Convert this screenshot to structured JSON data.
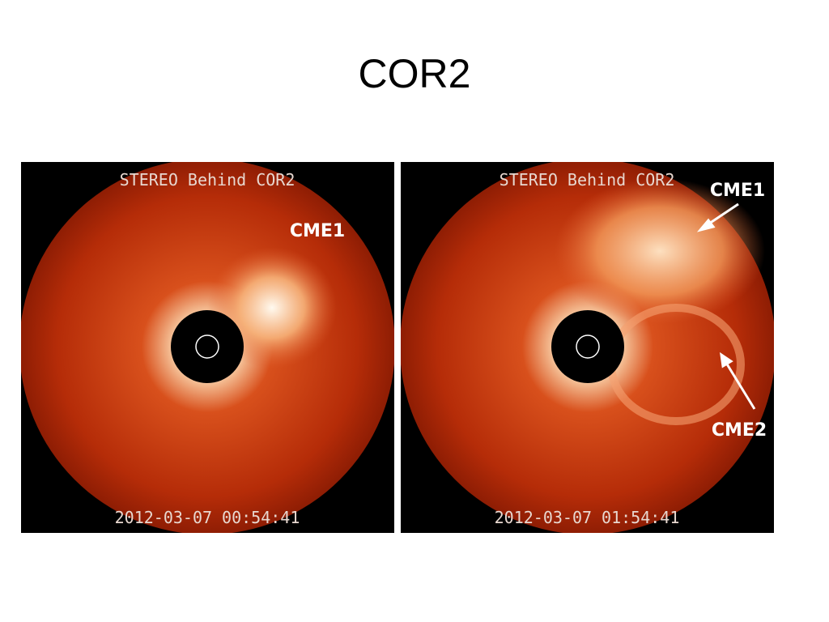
{
  "title": "COR2",
  "panels": [
    {
      "header": "STEREO Behind COR2",
      "timestamp": "2012-03-07 00:54:41",
      "labels": [
        "CME1"
      ]
    },
    {
      "header": "STEREO Behind COR2",
      "timestamp": "2012-03-07 01:54:41",
      "labels": [
        "CME1",
        "CME2"
      ]
    }
  ]
}
